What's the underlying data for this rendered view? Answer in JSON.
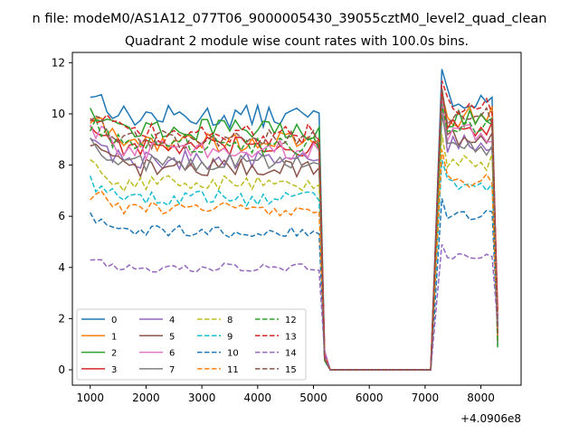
{
  "figure": {
    "suptitle": "n file: modeM0/AS1A12_077T06_9000005430_39055cztM0_level2_quad_clean"
  },
  "chart_data": {
    "type": "line",
    "title": "Quadrant 2 module wise count rates with 100.0s bins.",
    "xlabel": "",
    "ylabel": "",
    "x_offset_label": "+4.0906e8",
    "xlim": [
      680,
      8720
    ],
    "ylim": [
      -0.6,
      12.4
    ],
    "x_ticks": [
      1000,
      2000,
      3000,
      4000,
      5000,
      6000,
      7000,
      8000
    ],
    "y_ticks": [
      0,
      2,
      4,
      6,
      8,
      10,
      12
    ],
    "x_tick_labels": [
      "1000",
      "2000",
      "3000",
      "4000",
      "5000",
      "6000",
      "7000",
      "8000"
    ],
    "y_tick_labels": [
      "0",
      "2",
      "4",
      "6",
      "8",
      "10",
      "12"
    ],
    "grid": false,
    "legend": {
      "placement": "lower-left",
      "columns": 4
    },
    "series": [
      {
        "name": "0",
        "color": "#1f77b4",
        "dash": "solid",
        "pre_level": 9.9,
        "post_level": 10.6,
        "peak": 11.75
      },
      {
        "name": "1",
        "color": "#ff7f0e",
        "dash": "solid",
        "pre_level": 8.9,
        "post_level": 9.9,
        "peak": 10.8
      },
      {
        "name": "2",
        "color": "#2ca02c",
        "dash": "solid",
        "pre_level": 9.4,
        "post_level": 9.9,
        "peak": 11.0
      },
      {
        "name": "3",
        "color": "#d62728",
        "dash": "solid",
        "pre_level": 8.7,
        "post_level": 9.4,
        "peak": 10.9
      },
      {
        "name": "4",
        "color": "#9467bd",
        "dash": "solid",
        "pre_level": 8.2,
        "post_level": 8.8,
        "peak": 10.5
      },
      {
        "name": "5",
        "color": "#8c564b",
        "dash": "solid",
        "pre_level": 7.9,
        "post_level": 9.1,
        "peak": 10.2
      },
      {
        "name": "6",
        "color": "#e377c2",
        "dash": "solid",
        "pre_level": 8.6,
        "post_level": 9.2,
        "peak": 10.3
      },
      {
        "name": "7",
        "color": "#7f7f7f",
        "dash": "solid",
        "pre_level": 8.1,
        "post_level": 8.7,
        "peak": 10.0
      },
      {
        "name": "8",
        "color": "#bcbd22",
        "dash": "dashed",
        "pre_level": 7.3,
        "post_level": 8.1,
        "peak": 9.2
      },
      {
        "name": "9",
        "color": "#17becf",
        "dash": "dashed",
        "pre_level": 6.7,
        "post_level": 7.3,
        "peak": 8.2
      },
      {
        "name": "10",
        "color": "#1f77b4",
        "dash": "dashed",
        "pre_level": 5.4,
        "post_level": 6.0,
        "peak": 6.7
      },
      {
        "name": "11",
        "color": "#ff7f0e",
        "dash": "dashed",
        "pre_level": 6.3,
        "post_level": 7.4,
        "peak": 8.6
      },
      {
        "name": "12",
        "color": "#2ca02c",
        "dash": "dashed",
        "pre_level": 8.8,
        "post_level": 9.4,
        "peak": 10.4
      },
      {
        "name": "13",
        "color": "#d62728",
        "dash": "dashed",
        "pre_level": 9.2,
        "post_level": 10.3,
        "peak": 11.3
      },
      {
        "name": "14",
        "color": "#9467bd",
        "dash": "dashed",
        "pre_level": 4.0,
        "post_level": 4.4,
        "peak": 4.9
      },
      {
        "name": "15",
        "color": "#8c564b",
        "dash": "dashed",
        "pre_level": 9.0,
        "post_level": 10.0,
        "peak": 11.0
      }
    ],
    "time_profile": {
      "start": 1000,
      "step": 100,
      "active_1_end": 5100,
      "drop_points": [
        [
          5200,
          0.55
        ],
        [
          5300,
          0.0
        ]
      ],
      "quiet_end": 7100,
      "active_2_start": 7300,
      "active_2_end": 8200,
      "tail_points": [
        [
          8300,
          2.0
        ]
      ]
    }
  }
}
